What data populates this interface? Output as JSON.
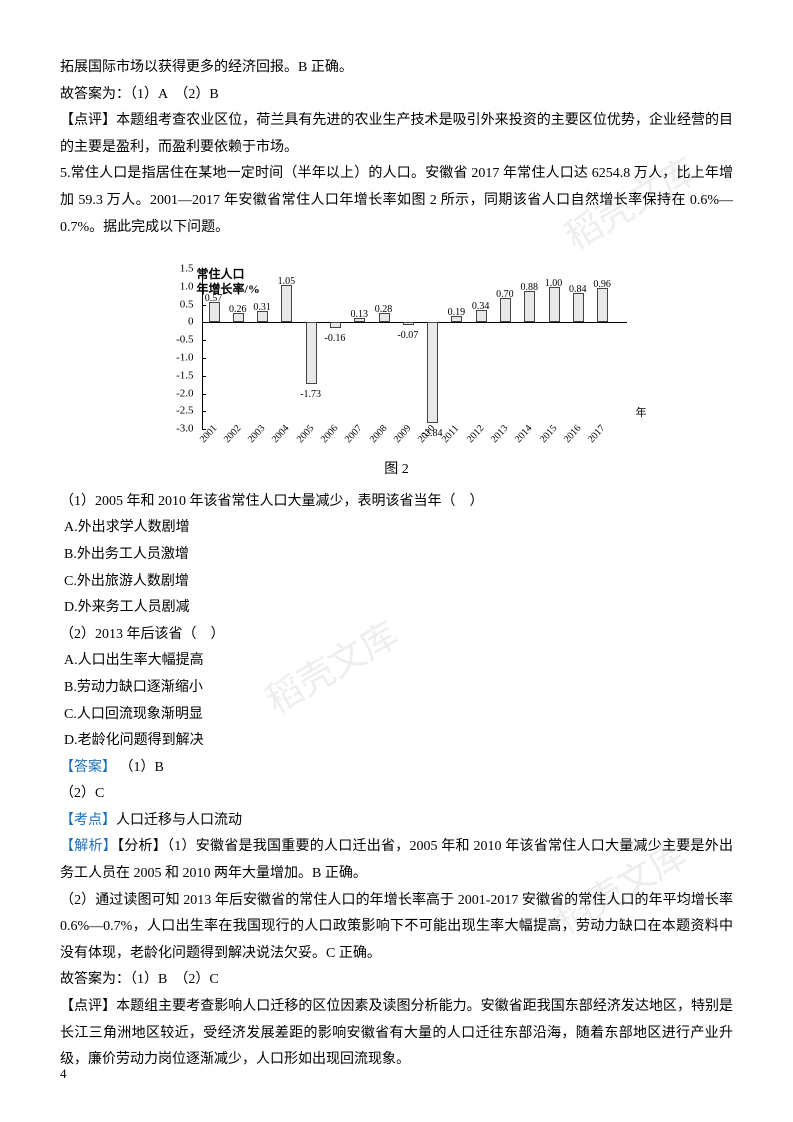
{
  "intro": {
    "line1": "拓展国际市场以获得更多的经济回报。B 正确。",
    "line2_prefix": "故答案为：",
    "line2_answers": "（1）A　（2）B",
    "comment_label": "【点评】",
    "comment": "本题组考查农业区位，荷兰具有先进的农业生产技术是吸引外来投资的主要区位优势，企业经营的目的主要是盈利，而盈利要依赖于市场。"
  },
  "q5": {
    "stem_prefix": "5.",
    "stem": "常住人口是指居住在某地一定时间（半年以上）的人口。安徽省 2017 年常住人口达 6254.8 万人，比上年增加 59.3 万人。2001—2017 年安徽省常住人口年增长率如图 2 所示，同期该省人口自然增长率保持在 0.6%—0.7%。据此完成以下问题。"
  },
  "chart": {
    "title_line1": "常住人口",
    "title_line2": "年增长率/%",
    "y_ticks": [
      1.5,
      1.0,
      0.5,
      0,
      -0.5,
      -1.0,
      -1.5,
      -2.0,
      -2.5,
      -3.0
    ],
    "ylim": [
      -3.0,
      1.5
    ],
    "years": [
      "2001",
      "2002",
      "2003",
      "2004",
      "2005",
      "2006",
      "2007",
      "2008",
      "2009",
      "2010",
      "2011",
      "2012",
      "2013",
      "2014",
      "2015",
      "2016",
      "2017"
    ],
    "values": [
      0.57,
      0.26,
      0.31,
      1.05,
      -1.73,
      -0.16,
      0.13,
      0.28,
      -0.07,
      -2.84,
      0.19,
      0.34,
      0.7,
      0.88,
      1.0,
      0.84,
      0.96
    ],
    "bar_fill": "#e8e8e8",
    "bar_stroke": "#444444",
    "axis_label": "年",
    "caption": "图 2"
  },
  "sub1": {
    "q": "（1）2005 年和 2010 年该省常住人口大量减少，表明该省当年（　）",
    "a": "A.外出求学人数剧增",
    "b": "B.外出务工人员激增",
    "c": "C.外出旅游人数剧增",
    "d": "D.外来务工人员剧减"
  },
  "sub2": {
    "q": "（2）2013 年后该省（　）",
    "a": "A.人口出生率大幅提高",
    "b": "B.劳动力缺口逐渐缩小",
    "c": "C.人口回流现象渐明显",
    "d": "D.老龄化问题得到解决"
  },
  "answer": {
    "label": "【答案】",
    "a1": "（1）B",
    "a2": "（2）C"
  },
  "point": {
    "label": "【考点】",
    "text": "人口迁移与人口流动"
  },
  "analysis": {
    "label1": "【解析】",
    "label2": "【分析】",
    "p1": "（1）安徽省是我国重要的人口迁出省，2005 年和 2010 年该省常住人口大量减少主要是外出务工人员在 2005 和 2010 两年大量增加。B 正确。",
    "p2": "（2）通过读图可知 2013 年后安徽省的常住人口的年增长率高于 2001-2017 安徽省的常住人口的年平均增长率 0.6%—0.7%，人口出生率在我国现行的人口政策影响下不可能出现生率大幅提高，劳动力缺口在本题资料中没有体现，老龄化问题得到解决说法欠妥。C 正确。",
    "conclusion_prefix": "故答案为：",
    "conclusion": "（1）B　（2）C"
  },
  "comment": {
    "label": "【点评】",
    "text": "本题组主要考查影响人口迁移的区位因素及读图分析能力。安徽省距我国东部经济发达地区，特别是长江三角洲地区较近，受经济发展差距的影响安徽省有大量的人口迁往东部沿海，随着东部地区进行产业升级，廉价劳动力岗位逐渐减少，人口形如出现回流现象。"
  },
  "watermark": "稻壳文库",
  "page": "4"
}
